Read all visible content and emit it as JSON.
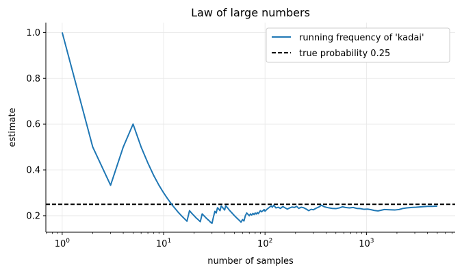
{
  "chart_data": {
    "type": "line",
    "title": "Law of large numbers",
    "xlabel": "number of samples",
    "ylabel": "estimate",
    "xscale": "log",
    "xlim": [
      0.69,
      7500
    ],
    "ylim": [
      0.128,
      1.043
    ],
    "grid": true,
    "legend_position": "top-right",
    "x_ticks": [
      {
        "value": 1,
        "base": "10",
        "exp": "0"
      },
      {
        "value": 10,
        "base": "10",
        "exp": "1"
      },
      {
        "value": 100,
        "base": "10",
        "exp": "2"
      },
      {
        "value": 1000,
        "base": "10",
        "exp": "3"
      }
    ],
    "y_ticks": [
      {
        "value": 0.2,
        "label": "0.2"
      },
      {
        "value": 0.4,
        "label": "0.4"
      },
      {
        "value": 0.6,
        "label": "0.6"
      },
      {
        "value": 0.8,
        "label": "0.8"
      },
      {
        "value": 1.0,
        "label": "1.0"
      }
    ],
    "series": [
      {
        "name": "running frequency of 'kadai'",
        "color": "#1f77b4",
        "style": "solid",
        "points": [
          [
            1,
            1.0
          ],
          [
            2,
            0.5
          ],
          [
            3,
            0.333
          ],
          [
            4,
            0.5
          ],
          [
            5,
            0.6
          ],
          [
            6,
            0.5
          ],
          [
            7,
            0.43
          ],
          [
            8,
            0.375
          ],
          [
            9,
            0.333
          ],
          [
            10,
            0.3
          ],
          [
            11,
            0.273
          ],
          [
            12,
            0.25
          ],
          [
            13,
            0.231
          ],
          [
            14,
            0.214
          ],
          [
            15,
            0.2
          ],
          [
            16,
            0.1875
          ],
          [
            17,
            0.176
          ],
          [
            18,
            0.222
          ],
          [
            19,
            0.21
          ],
          [
            20,
            0.2
          ],
          [
            21,
            0.19
          ],
          [
            22,
            0.182
          ],
          [
            23,
            0.174
          ],
          [
            24,
            0.208
          ],
          [
            25,
            0.2
          ],
          [
            26,
            0.192
          ],
          [
            27,
            0.185
          ],
          [
            28,
            0.179
          ],
          [
            29,
            0.172
          ],
          [
            30,
            0.167
          ],
          [
            31,
            0.194
          ],
          [
            32,
            0.219
          ],
          [
            33,
            0.212
          ],
          [
            34,
            0.235
          ],
          [
            35,
            0.229
          ],
          [
            36,
            0.222
          ],
          [
            37,
            0.243
          ],
          [
            38,
            0.237
          ],
          [
            39,
            0.231
          ],
          [
            40,
            0.225
          ],
          [
            41,
            0.244
          ],
          [
            42,
            0.238
          ],
          [
            43,
            0.233
          ],
          [
            44,
            0.227
          ],
          [
            45,
            0.222
          ],
          [
            47,
            0.213
          ],
          [
            50,
            0.2
          ],
          [
            53,
            0.189
          ],
          [
            56,
            0.179
          ],
          [
            58,
            0.172
          ],
          [
            60,
            0.183
          ],
          [
            62,
            0.177
          ],
          [
            64,
            0.2
          ],
          [
            66,
            0.212
          ],
          [
            68,
            0.206
          ],
          [
            70,
            0.2
          ],
          [
            72,
            0.208
          ],
          [
            74,
            0.203
          ],
          [
            76,
            0.21
          ],
          [
            78,
            0.205
          ],
          [
            80,
            0.212
          ],
          [
            82,
            0.207
          ],
          [
            84,
            0.214
          ],
          [
            86,
            0.209
          ],
          [
            88,
            0.216
          ],
          [
            90,
            0.222
          ],
          [
            92,
            0.217
          ],
          [
            95,
            0.221
          ],
          [
            98,
            0.227
          ],
          [
            100,
            0.22
          ],
          [
            105,
            0.229
          ],
          [
            110,
            0.236
          ],
          [
            115,
            0.243
          ],
          [
            118,
            0.237
          ],
          [
            122,
            0.246
          ],
          [
            128,
            0.234
          ],
          [
            135,
            0.237
          ],
          [
            142,
            0.232
          ],
          [
            150,
            0.24
          ],
          [
            158,
            0.234
          ],
          [
            166,
            0.229
          ],
          [
            175,
            0.234
          ],
          [
            185,
            0.238
          ],
          [
            195,
            0.236
          ],
          [
            205,
            0.241
          ],
          [
            215,
            0.232
          ],
          [
            228,
            0.237
          ],
          [
            240,
            0.235
          ],
          [
            255,
            0.229
          ],
          [
            270,
            0.222
          ],
          [
            285,
            0.228
          ],
          [
            300,
            0.226
          ],
          [
            320,
            0.233
          ],
          [
            340,
            0.238
          ],
          [
            360,
            0.246
          ],
          [
            380,
            0.24
          ],
          [
            400,
            0.237
          ],
          [
            430,
            0.234
          ],
          [
            460,
            0.232
          ],
          [
            500,
            0.231
          ],
          [
            540,
            0.234
          ],
          [
            580,
            0.239
          ],
          [
            620,
            0.236
          ],
          [
            680,
            0.234
          ],
          [
            740,
            0.236
          ],
          [
            800,
            0.232
          ],
          [
            870,
            0.231
          ],
          [
            950,
            0.228
          ],
          [
            1030,
            0.229
          ],
          [
            1120,
            0.226
          ],
          [
            1200,
            0.223
          ],
          [
            1300,
            0.221
          ],
          [
            1400,
            0.224
          ],
          [
            1500,
            0.227
          ],
          [
            1700,
            0.226
          ],
          [
            1900,
            0.225
          ],
          [
            2100,
            0.227
          ],
          [
            2300,
            0.232
          ],
          [
            2500,
            0.234
          ],
          [
            2800,
            0.236
          ],
          [
            3100,
            0.237
          ],
          [
            3500,
            0.239
          ],
          [
            4000,
            0.241
          ],
          [
            4500,
            0.241
          ],
          [
            5000,
            0.242
          ]
        ]
      }
    ],
    "reference_lines": [
      {
        "name": "true probability 0.25",
        "y": 0.25,
        "color": "#000000",
        "style": "dashed"
      }
    ]
  }
}
